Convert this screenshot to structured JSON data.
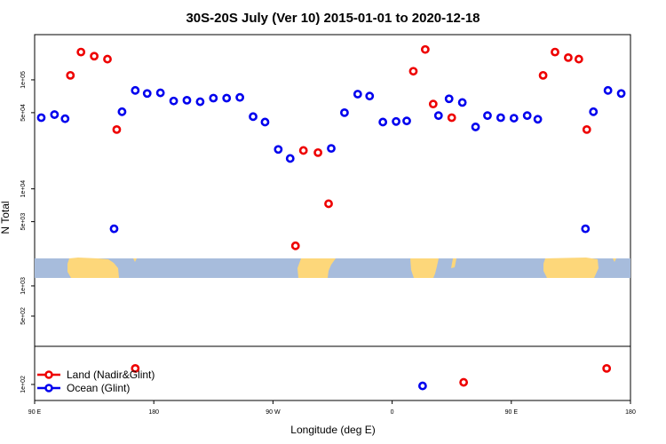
{
  "chart_data": {
    "type": "scatter",
    "title": "30S-20S July (Ver 10)   2015-01-01 to 2020-12-18",
    "xlabel": "Longitude (deg E)",
    "ylabel": "N Total",
    "x_ticks": [
      {
        "value": 90,
        "label": "90 E"
      },
      {
        "value": 180,
        "label": "180"
      },
      {
        "value": 270,
        "label": "90 W"
      },
      {
        "value": 360,
        "label": "0"
      },
      {
        "value": 450,
        "label": "90 E"
      },
      {
        "value": 540,
        "label": "180"
      }
    ],
    "xlim": [
      90,
      540
    ],
    "y_scale": "log",
    "y_axis_breaks": true,
    "y_ticks_upper": [
      {
        "value": 100000,
        "label": "1e+05"
      },
      {
        "value": 50000,
        "label": "5e+04"
      },
      {
        "value": 10000,
        "label": "1e+04"
      },
      {
        "value": 5000,
        "label": "5e+03"
      }
    ],
    "y_ticks_middle": [
      {
        "value": 1000,
        "label": "1e+03"
      },
      {
        "value": 500,
        "label": "5e+02"
      }
    ],
    "y_ticks_lower": [
      {
        "value": 100,
        "label": "1e+02"
      }
    ],
    "ylim_upper": [
      2300,
      260000
    ],
    "ylim_middle": [
      250,
      1200
    ],
    "ylim_lower": [
      80,
      170
    ],
    "grid": false,
    "legend_position": "bottom-left",
    "series": [
      {
        "name": "Land (Nadir&Glint)",
        "color": "#ee0000",
        "points": [
          {
            "x": 117,
            "y": 110000,
            "panel": "upper"
          },
          {
            "x": 125,
            "y": 180000,
            "panel": "upper"
          },
          {
            "x": 135,
            "y": 165000,
            "panel": "upper"
          },
          {
            "x": 145,
            "y": 155000,
            "panel": "upper"
          },
          {
            "x": 152,
            "y": 35000,
            "panel": "upper"
          },
          {
            "x": 166,
            "y": 125,
            "panel": "lower"
          },
          {
            "x": 287,
            "y": 3000,
            "panel": "upper"
          },
          {
            "x": 293,
            "y": 22500,
            "panel": "upper"
          },
          {
            "x": 304,
            "y": 21500,
            "panel": "upper"
          },
          {
            "x": 312,
            "y": 7300,
            "panel": "upper"
          },
          {
            "x": 376,
            "y": 120000,
            "panel": "upper"
          },
          {
            "x": 385,
            "y": 190000,
            "panel": "upper"
          },
          {
            "x": 391,
            "y": 60000,
            "panel": "upper"
          },
          {
            "x": 405,
            "y": 45000,
            "panel": "upper"
          },
          {
            "x": 414,
            "y": 103,
            "panel": "lower"
          },
          {
            "x": 474,
            "y": 110000,
            "panel": "upper"
          },
          {
            "x": 483,
            "y": 180000,
            "panel": "upper"
          },
          {
            "x": 493,
            "y": 160000,
            "panel": "upper"
          },
          {
            "x": 501,
            "y": 155000,
            "panel": "upper"
          },
          {
            "x": 507,
            "y": 35000,
            "panel": "upper"
          },
          {
            "x": 522,
            "y": 125,
            "panel": "lower"
          }
        ]
      },
      {
        "name": "Ocean (Glint)",
        "color": "#0000ee",
        "points": [
          {
            "x": 95,
            "y": 45000,
            "panel": "upper"
          },
          {
            "x": 105,
            "y": 48000,
            "panel": "upper"
          },
          {
            "x": 113,
            "y": 44000,
            "panel": "upper"
          },
          {
            "x": 150,
            "y": 4300,
            "panel": "upper"
          },
          {
            "x": 156,
            "y": 51000,
            "panel": "upper"
          },
          {
            "x": 166,
            "y": 80000,
            "panel": "upper"
          },
          {
            "x": 175,
            "y": 75000,
            "panel": "upper"
          },
          {
            "x": 185,
            "y": 76000,
            "panel": "upper"
          },
          {
            "x": 195,
            "y": 64000,
            "panel": "upper"
          },
          {
            "x": 205,
            "y": 65000,
            "panel": "upper"
          },
          {
            "x": 215,
            "y": 63000,
            "panel": "upper"
          },
          {
            "x": 225,
            "y": 68000,
            "panel": "upper"
          },
          {
            "x": 235,
            "y": 68000,
            "panel": "upper"
          },
          {
            "x": 245,
            "y": 69000,
            "panel": "upper"
          },
          {
            "x": 255,
            "y": 46000,
            "panel": "upper"
          },
          {
            "x": 264,
            "y": 41000,
            "panel": "upper"
          },
          {
            "x": 274,
            "y": 23000,
            "panel": "upper"
          },
          {
            "x": 283,
            "y": 19000,
            "panel": "upper"
          },
          {
            "x": 314,
            "y": 23500,
            "panel": "upper"
          },
          {
            "x": 324,
            "y": 50000,
            "panel": "upper"
          },
          {
            "x": 334,
            "y": 74000,
            "panel": "upper"
          },
          {
            "x": 343,
            "y": 71000,
            "panel": "upper"
          },
          {
            "x": 353,
            "y": 41000,
            "panel": "upper"
          },
          {
            "x": 363,
            "y": 41500,
            "panel": "upper"
          },
          {
            "x": 371,
            "y": 42000,
            "panel": "upper"
          },
          {
            "x": 383,
            "y": 98,
            "panel": "lower"
          },
          {
            "x": 395,
            "y": 47000,
            "panel": "upper"
          },
          {
            "x": 403,
            "y": 67000,
            "panel": "upper"
          },
          {
            "x": 413,
            "y": 62000,
            "panel": "upper"
          },
          {
            "x": 423,
            "y": 37000,
            "panel": "upper"
          },
          {
            "x": 432,
            "y": 47000,
            "panel": "upper"
          },
          {
            "x": 442,
            "y": 45000,
            "panel": "upper"
          },
          {
            "x": 452,
            "y": 44500,
            "panel": "upper"
          },
          {
            "x": 462,
            "y": 47000,
            "panel": "upper"
          },
          {
            "x": 470,
            "y": 43500,
            "panel": "upper"
          },
          {
            "x": 506,
            "y": 4300,
            "panel": "upper"
          },
          {
            "x": 512,
            "y": 51000,
            "panel": "upper"
          },
          {
            "x": 523,
            "y": 80000,
            "panel": "upper"
          },
          {
            "x": 533,
            "y": 75000,
            "panel": "upper"
          }
        ]
      }
    ]
  }
}
